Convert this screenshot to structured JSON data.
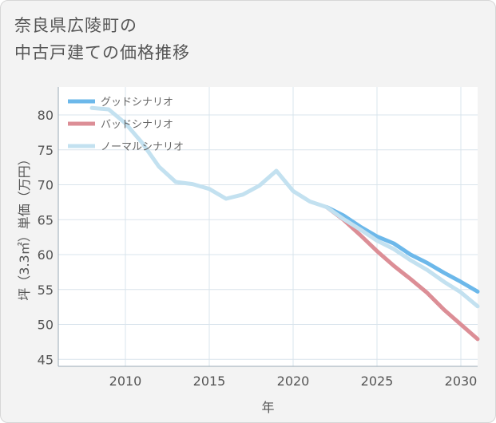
{
  "title": "奈良県広陵町の\n中古戸建ての価格推移",
  "chart_data": {
    "type": "line",
    "xlabel": "年",
    "ylabel": "坪（3.3㎡）単価（万円）",
    "xlim": [
      2006,
      2031
    ],
    "ylim": [
      44,
      84
    ],
    "xticks": [
      2010,
      2015,
      2020,
      2025,
      2030
    ],
    "yticks": [
      45,
      50,
      55,
      60,
      65,
      70,
      75,
      80
    ],
    "grid": true,
    "legend_position": "top-left",
    "series": [
      {
        "name": "グッドシナリオ",
        "color": "#6cb8ea",
        "x": [
          2022,
          2023,
          2024,
          2025,
          2026,
          2027,
          2028,
          2029,
          2030,
          2031
        ],
        "values": [
          66.8,
          65.6,
          64.0,
          62.6,
          61.6,
          60.0,
          58.8,
          57.4,
          56.1,
          54.7
        ]
      },
      {
        "name": "バッドシナリオ",
        "color": "#dc8e96",
        "x": [
          2022,
          2023,
          2024,
          2025,
          2026,
          2027,
          2028,
          2029,
          2030,
          2031
        ],
        "values": [
          66.8,
          65.0,
          62.8,
          60.5,
          58.4,
          56.5,
          54.5,
          52.1,
          50.0,
          47.9
        ]
      },
      {
        "name": "ノーマルシナリオ",
        "color": "#c3e1f0",
        "x": [
          2008,
          2009,
          2010,
          2011,
          2012,
          2013,
          2014,
          2015,
          2016,
          2017,
          2018,
          2019,
          2020,
          2021,
          2022,
          2023,
          2024,
          2025,
          2026,
          2027,
          2028,
          2029,
          2030,
          2031
        ],
        "values": [
          81.0,
          80.8,
          78.8,
          76.0,
          72.6,
          70.4,
          70.1,
          69.4,
          68.0,
          68.6,
          69.9,
          72.0,
          69.1,
          67.6,
          66.8,
          65.1,
          63.6,
          62.0,
          60.8,
          59.2,
          57.8,
          56.1,
          54.6,
          52.6
        ]
      }
    ]
  }
}
